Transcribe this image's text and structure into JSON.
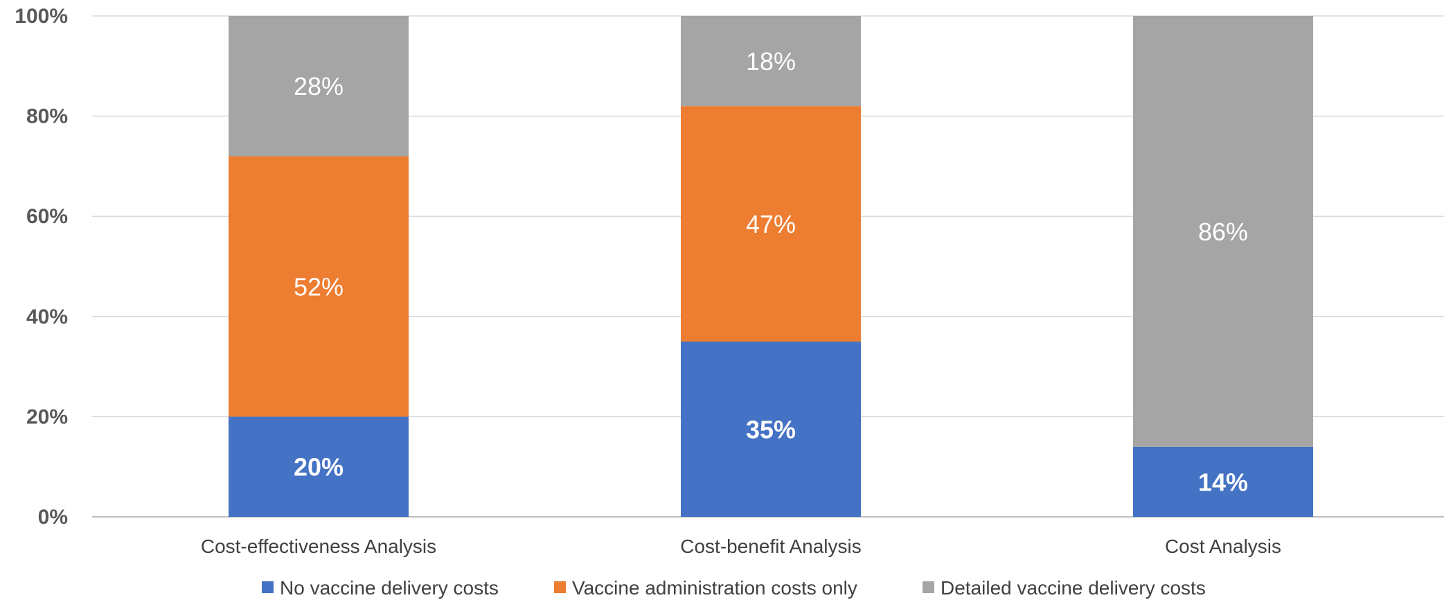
{
  "chart_data": {
    "type": "bar",
    "stacked": true,
    "categories": [
      "Cost-effectiveness Analysis",
      "Cost-benefit Analysis",
      "Cost Analysis"
    ],
    "series": [
      {
        "name": "No vaccine delivery costs",
        "color": "#4472C4",
        "values": [
          20,
          35,
          14
        ],
        "labels": [
          "20%",
          "35%",
          "14%"
        ],
        "label_bold": true
      },
      {
        "name": "Vaccine administration costs only",
        "color": "#ED7D31",
        "values": [
          52,
          47,
          0
        ],
        "labels": [
          "52%",
          "47%",
          ""
        ],
        "label_bold": false
      },
      {
        "name": "Detailed vaccine delivery costs",
        "color": "#A5A5A5",
        "values": [
          28,
          18,
          86
        ],
        "labels": [
          "28%",
          "18%",
          "86%"
        ],
        "label_bold": false
      }
    ],
    "ylim": [
      0,
      100
    ],
    "yticks": [
      "0%",
      "20%",
      "40%",
      "60%",
      "80%",
      "100%"
    ],
    "grid": true,
    "legend_position": "bottom",
    "title": "",
    "xlabel": "",
    "ylabel": ""
  }
}
